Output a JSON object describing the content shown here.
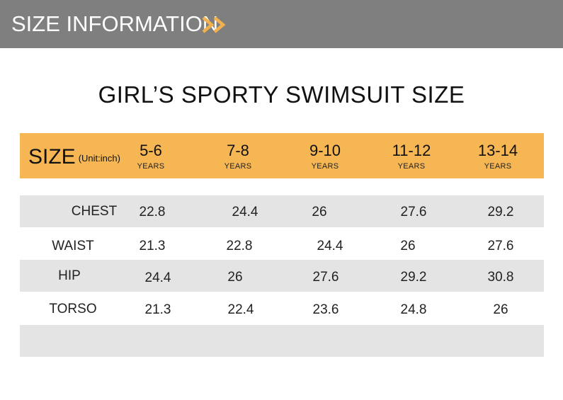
{
  "banner": {
    "title": "SIZE INFORMATION",
    "icon": "double-chevron-right-icon",
    "arrow_color": "#f2b04e",
    "background": "#7f7f7f"
  },
  "title": "GIRL’S SPORTY SWIMSUIT SIZE",
  "header": {
    "size_label": "SIZE",
    "unit_label": "(Unit:inch)",
    "background": "#f6b654",
    "columns": [
      {
        "range": "5-6",
        "unit": "YEARS"
      },
      {
        "range": "7-8",
        "unit": "YEARS"
      },
      {
        "range": "9-10",
        "unit": "YEARS"
      },
      {
        "range": "11-12",
        "unit": "YEARS"
      },
      {
        "range": "13-14",
        "unit": "YEARS"
      }
    ]
  },
  "rows": [
    {
      "label": "CHEST",
      "values": [
        "22.8",
        "24.4",
        "26",
        "27.6",
        "29.2"
      ]
    },
    {
      "label": "WAIST",
      "values": [
        "21.3",
        "22.8",
        "24.4",
        "26",
        "27.6"
      ]
    },
    {
      "label": "HIP",
      "values": [
        "24.4",
        "26",
        "27.6",
        "29.2",
        "30.8"
      ]
    },
    {
      "label": "TORSO",
      "values": [
        "21.3",
        "22.4",
        "23.6",
        "24.8",
        "26"
      ]
    }
  ],
  "row_shade_color": "#e4e4e4"
}
